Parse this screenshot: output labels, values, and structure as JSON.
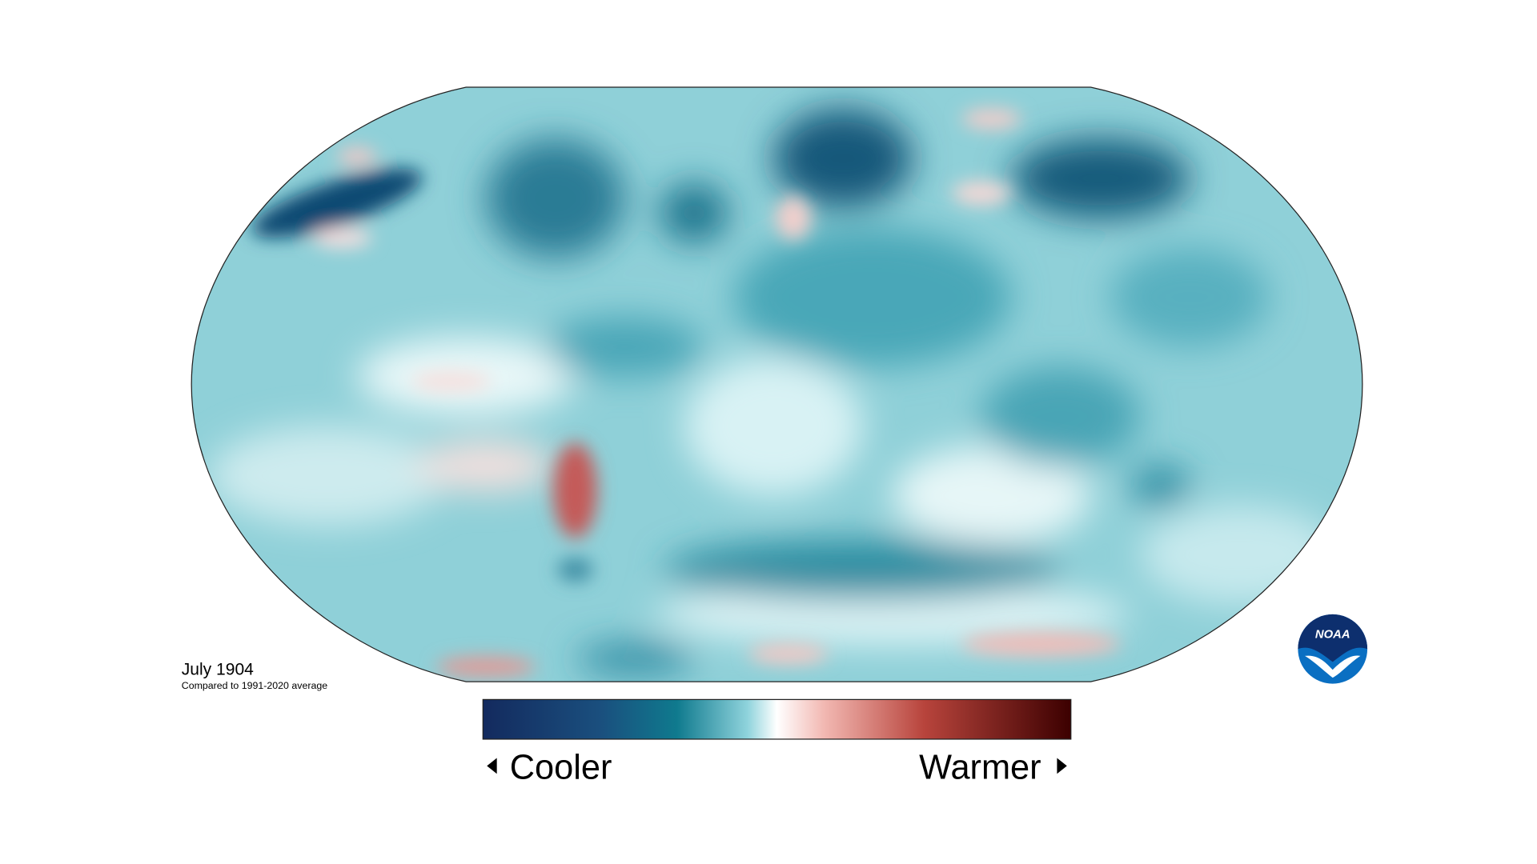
{
  "title": "July 1904",
  "subtitle": "Compared to 1991-2020 average",
  "legend": {
    "low": "Cooler",
    "high": "Warmer"
  },
  "logo": "NOAA"
}
